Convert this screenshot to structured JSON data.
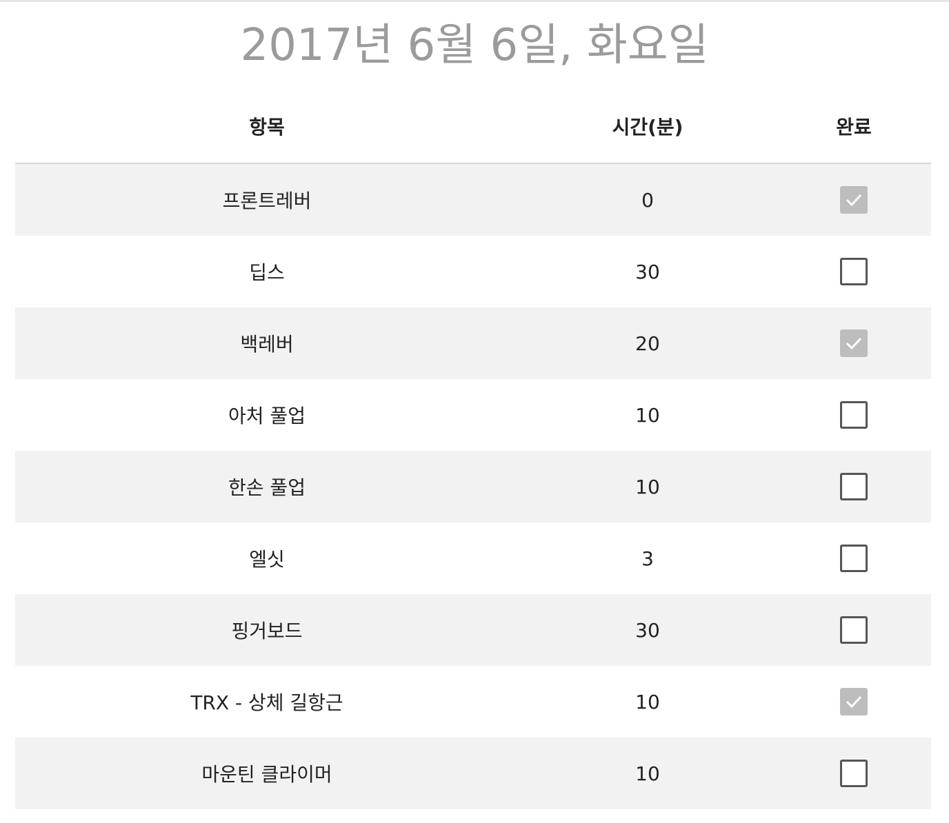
{
  "page": {
    "title": "2017년 6월 6일, 화요일"
  },
  "table": {
    "headers": {
      "item": "항목",
      "time": "시간(분)",
      "done": "완료"
    },
    "rows": [
      {
        "item": "프론트레버",
        "time": "0",
        "done": true
      },
      {
        "item": "딥스",
        "time": "30",
        "done": false
      },
      {
        "item": "백레버",
        "time": "20",
        "done": true
      },
      {
        "item": "아처 풀업",
        "time": "10",
        "done": false
      },
      {
        "item": "한손 풀업",
        "time": "10",
        "done": false
      },
      {
        "item": "엘싯",
        "time": "3",
        "done": false
      },
      {
        "item": "핑거보드",
        "time": "30",
        "done": false
      },
      {
        "item": "TRX - 상체 길항근",
        "time": "10",
        "done": true
      },
      {
        "item": "마운틴 클라이머",
        "time": "10",
        "done": false
      }
    ]
  },
  "colors": {
    "checked_fill": "#bdbdbd",
    "unchecked_border": "#555555",
    "shaded_row": "#f2f2f2",
    "title": "#9b9b9b"
  },
  "icons": {
    "check": "check-icon"
  }
}
